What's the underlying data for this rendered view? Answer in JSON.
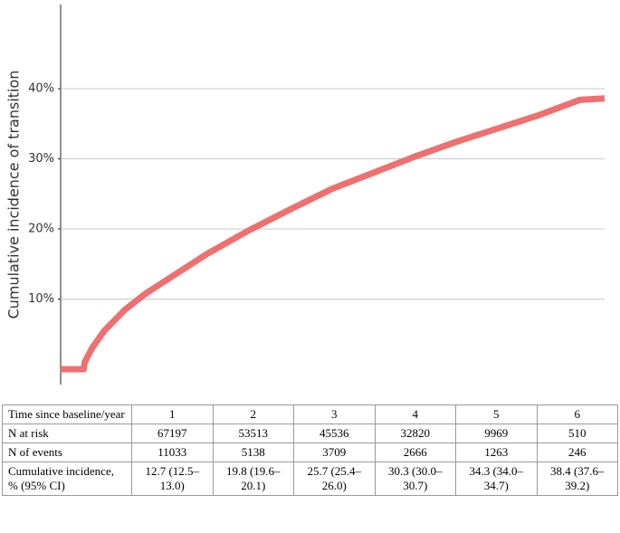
{
  "chart_data": {
    "type": "line",
    "ylabel": "Cumulative incidence of transition",
    "x": [
      -0.28,
      0,
      0.01,
      0.1,
      0.25,
      0.5,
      0.75,
      1,
      1.5,
      2,
      2.5,
      3,
      3.5,
      4,
      4.5,
      5,
      5.5,
      6,
      6.3
    ],
    "series": [
      {
        "color": "#ee7070",
        "values": [
          0,
          0,
          1,
          3,
          5.5,
          8.5,
          10.8,
          12.7,
          16.5,
          19.8,
          22.8,
          25.7,
          28,
          30.3,
          32.4,
          34.3,
          36.2,
          38.4,
          38.6
        ]
      }
    ],
    "xlim": [
      -0.28,
      6.3
    ],
    "ylim": [
      -2.2,
      52
    ],
    "yticks": [
      {
        "value": 10,
        "label": "10%"
      },
      {
        "value": 20,
        "label": "20%"
      },
      {
        "value": 30,
        "label": "30%"
      },
      {
        "value": 40,
        "label": "40%"
      }
    ],
    "grid": true
  },
  "table": {
    "rows": [
      [
        "Time since baseline/year",
        "1",
        "2",
        "3",
        "4",
        "5",
        "6"
      ],
      [
        "N at risk",
        "67197",
        "53513",
        "45536",
        "32820",
        "9969",
        "510"
      ],
      [
        "N of events",
        "11033",
        "5138",
        "3709",
        "2666",
        "1263",
        "246"
      ],
      [
        "Cumulative incidence, % (95% CI)",
        "12.7 (12.5–13.0)",
        "19.8 (19.6–20.1)",
        "25.7 (25.4–26.0)",
        "30.3 (30.0–30.7)",
        "34.3 (34.0–34.7)",
        "38.4 (37.6–39.2)"
      ]
    ]
  }
}
